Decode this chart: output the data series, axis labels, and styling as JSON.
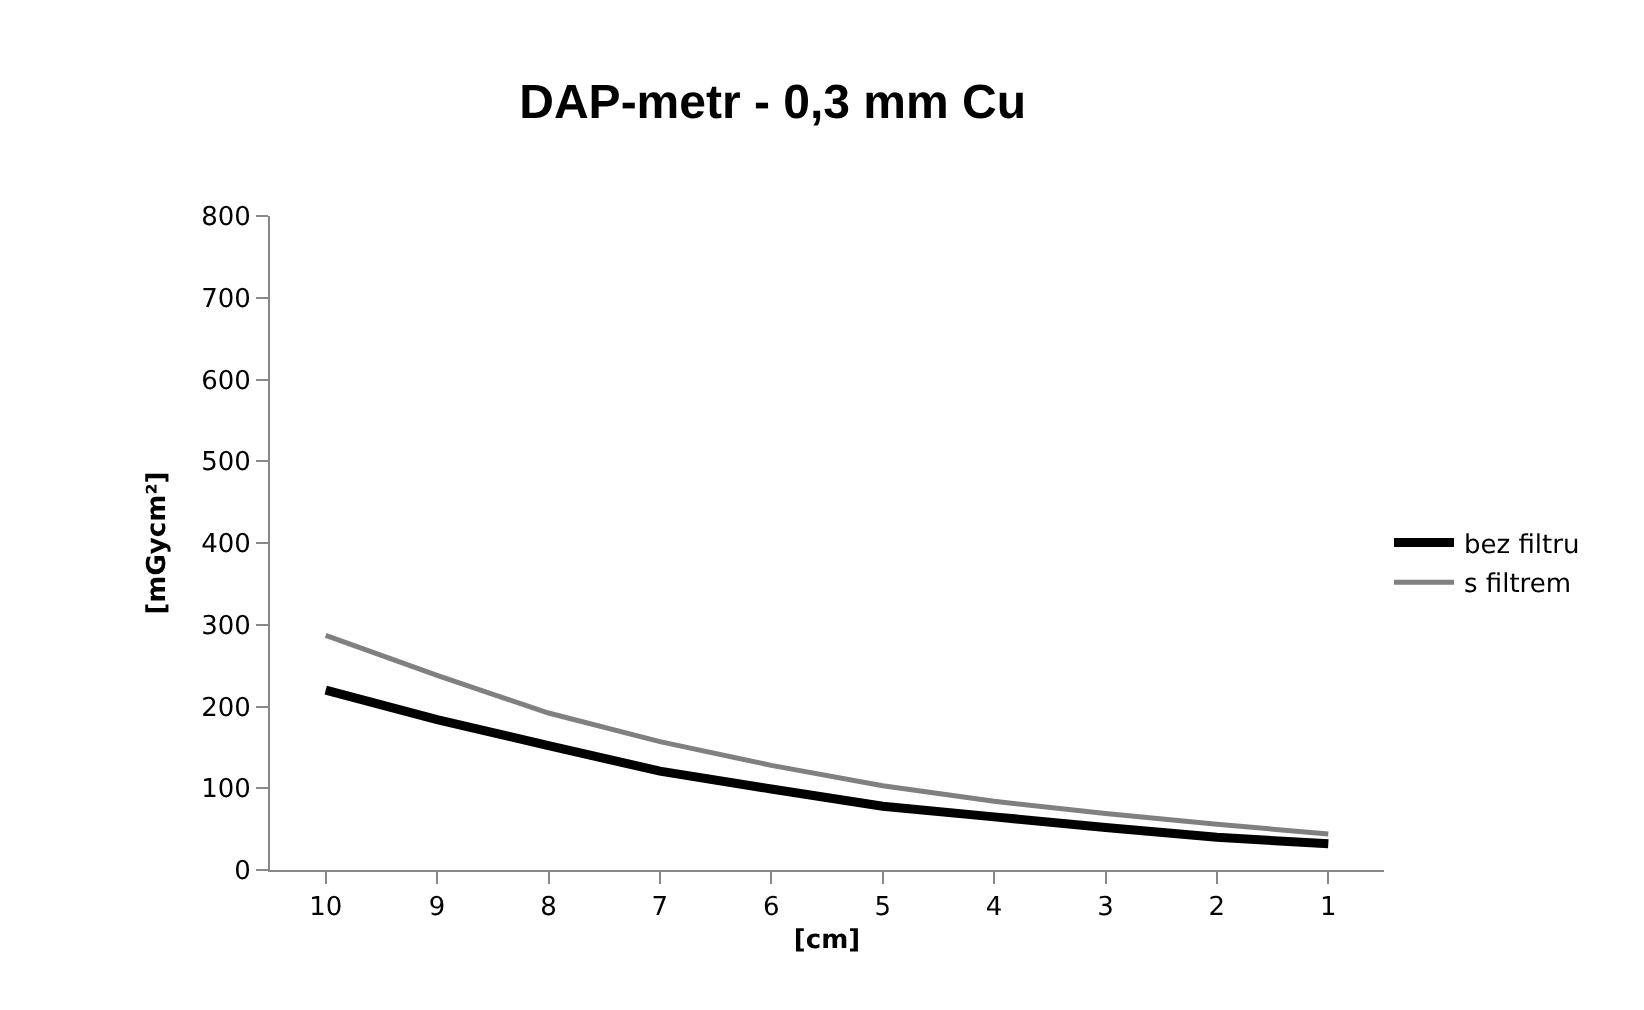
{
  "chart_data": {
    "type": "line",
    "title": "DAP-metr - 0,3 mm Cu",
    "xlabel": "[cm]",
    "ylabel": "[mGycm²]",
    "categories": [
      "10",
      "9",
      "8",
      "7",
      "6",
      "5",
      "4",
      "3",
      "2",
      "1"
    ],
    "series": [
      {
        "name": "bez filtru",
        "color": "#000000",
        "values": [
          220,
          184,
          152,
          121,
          99,
          78,
          65,
          52,
          40,
          32
        ]
      },
      {
        "name": "s filtrem",
        "color": "#808080",
        "values": [
          287,
          238,
          192,
          157,
          128,
          103,
          84,
          69,
          56,
          44
        ]
      }
    ],
    "ylim": [
      0,
      800
    ],
    "yticks": [
      0,
      100,
      200,
      300,
      400,
      500,
      600,
      700,
      800
    ],
    "grid": false,
    "legend": "right",
    "marker": "none",
    "line_style": "solid"
  }
}
